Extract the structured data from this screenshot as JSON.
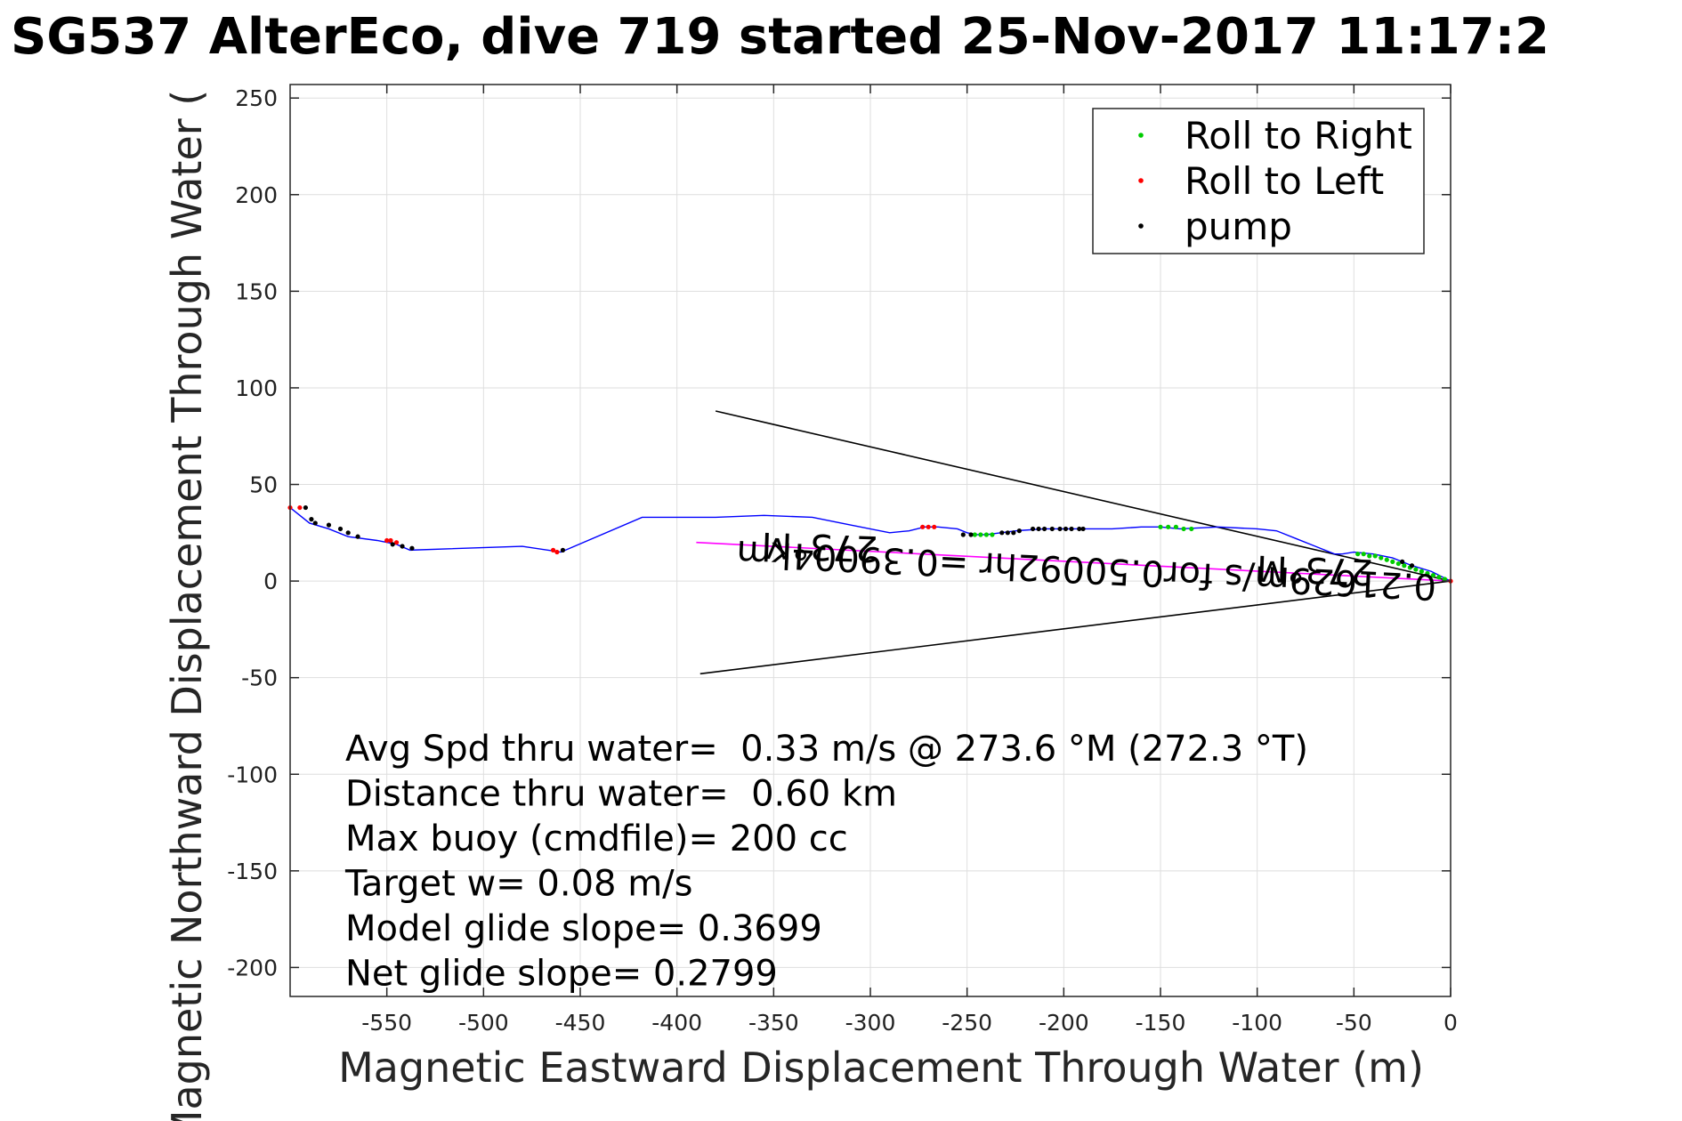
{
  "title": "SG537 AlterEco, dive 719 started 25-Nov-2017 11:17:2",
  "chart_data": {
    "type": "scatter",
    "xlabel": "Magnetic Eastward Displacement Through Water (m)",
    "ylabel": "Magnetic Northward Displacement Through Water (",
    "xlim": [
      -600,
      0
    ],
    "ylim": [
      -215,
      257
    ],
    "xticks": [
      -550,
      -500,
      -450,
      -400,
      -350,
      -300,
      -250,
      -200,
      -150,
      -100,
      -50,
      0
    ],
    "yticks": [
      250,
      200,
      150,
      100,
      50,
      0,
      -50,
      -100,
      -150,
      -200
    ],
    "grid": true,
    "legend_position": "top-right",
    "legend": [
      {
        "label": "Roll to Right",
        "color": "#00cc00"
      },
      {
        "label": "Roll to Left",
        "color": "#ff0000"
      },
      {
        "label": "pump",
        "color": "#000000"
      }
    ],
    "track": {
      "color": "#0000ff",
      "x": [
        0,
        -10,
        -20,
        -30,
        -40,
        -50,
        -56,
        -60,
        -70,
        -80,
        -90,
        -100,
        -120,
        -140,
        -150,
        -160,
        -175,
        -190,
        -200,
        -210,
        -225,
        -240,
        -245,
        -250,
        -255,
        -265,
        -272,
        -280,
        -290,
        -310,
        -330,
        -355,
        -380,
        -400,
        -418,
        -460,
        -480,
        -538,
        -545,
        -555,
        -570,
        -580,
        -590,
        -600
      ],
      "y": [
        0,
        5,
        8,
        12,
        14,
        15,
        14,
        14,
        18,
        22,
        26,
        27,
        28,
        27,
        28,
        28,
        27,
        27,
        27,
        27,
        26,
        24,
        24,
        25,
        27,
        28,
        28,
        26,
        25,
        29,
        33,
        34,
        33,
        33,
        33,
        15,
        18,
        16,
        19,
        21,
        23,
        27,
        30,
        38
      ]
    },
    "roll_right": {
      "x": [
        -3,
        -6,
        -9,
        -12,
        -15,
        -18,
        -21,
        -24,
        -27,
        -30,
        -33,
        -36,
        -39,
        -42,
        -45,
        -48,
        -150,
        -146,
        -142,
        -138,
        -134,
        -246,
        -243,
        -240,
        -237
      ],
      "y": [
        1,
        2,
        3,
        4,
        5,
        6,
        7,
        8,
        9,
        10,
        11,
        12,
        13,
        13,
        14,
        14,
        28,
        28,
        28,
        27,
        27,
        24,
        24,
        24,
        24
      ]
    },
    "roll_left": {
      "x": [
        0,
        -270,
        -267,
        -273,
        -462,
        -464,
        -550,
        -548,
        -545,
        -595,
        -600
      ],
      "y": [
        0,
        28,
        28,
        28,
        15,
        16,
        21,
        21,
        20,
        38,
        38
      ]
    },
    "pump": {
      "x": [
        -20,
        -25,
        -252,
        -248,
        -232,
        -229,
        -226,
        -223,
        -216,
        -213,
        -210,
        -206,
        -202,
        -199,
        -196,
        -192,
        -190,
        -459,
        -537,
        -542,
        -547,
        -565,
        -570,
        -574,
        -580,
        -587,
        -589,
        -592
      ],
      "y": [
        8,
        10,
        24,
        24,
        25,
        25,
        25,
        26,
        27,
        27,
        27,
        27,
        27,
        27,
        27,
        27,
        27,
        16,
        17,
        18,
        19,
        23,
        25,
        27,
        29,
        30,
        32,
        38
      ]
    },
    "reference_lines": [
      {
        "color": "#000000",
        "from": [
          0,
          0
        ],
        "to": [
          -380,
          88
        ]
      },
      {
        "color": "#000000",
        "from": [
          0,
          0
        ],
        "to": [
          -388,
          -48
        ]
      },
      {
        "color": "#ff00ff",
        "from": [
          0,
          0
        ],
        "to": [
          -390,
          20
        ]
      }
    ],
    "rotated_annotations": [
      {
        "text": "273°M",
        "x": -326,
        "y": 24
      },
      {
        "text": "0.21629m/s for0.50092hr =0.39004km",
        "x": -188,
        "y": 12
      },
      {
        "text": "273°M",
        "x": -70,
        "y": 12
      }
    ]
  },
  "stats": [
    "Avg Spd thru water=  0.33 m/s @ 273.6 °M (272.3 °T)",
    "Distance thru water=  0.60 km",
    "Max buoy (cmdfile)= 200 cc",
    "Target w= 0.08 m/s",
    "Model glide slope= 0.3699",
    "Net glide slope= 0.2799"
  ]
}
